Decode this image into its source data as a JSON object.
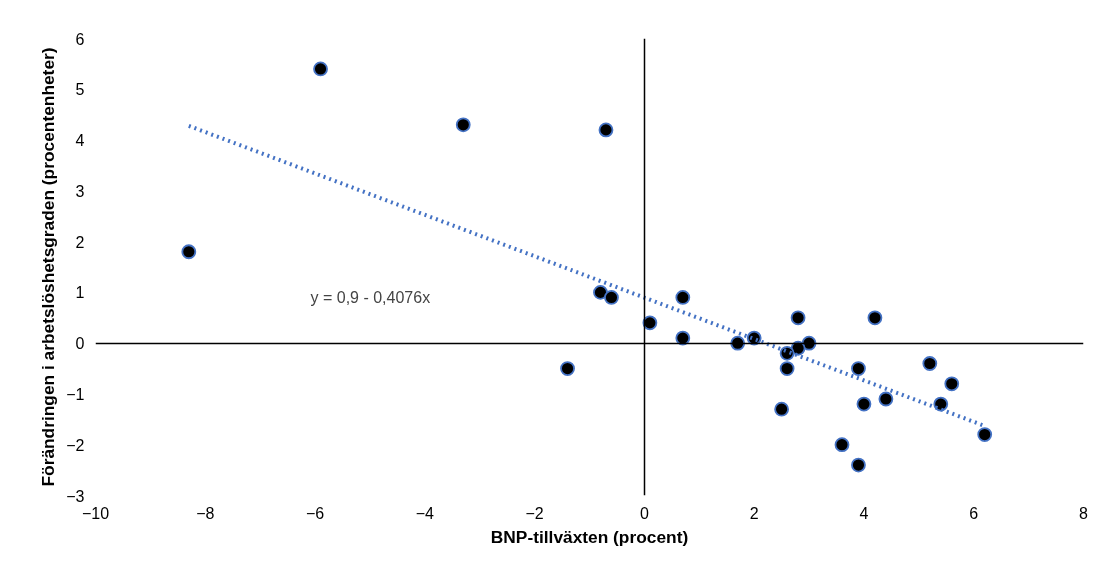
{
  "chart_data": {
    "type": "scatter",
    "xlabel": "BNP-tillväxten (procent)",
    "ylabel": "Förändringen i arbetslöshetsgraden (procentenheter)",
    "annotations": [
      "y = 0,9 - 0,4076x"
    ],
    "xlim": [
      -10,
      8
    ],
    "ylim": [
      -3,
      6
    ],
    "xticks": [
      -10,
      -8,
      -6,
      -4,
      -2,
      0,
      2,
      4,
      6,
      8
    ],
    "yticks": [
      -3,
      -2,
      -1,
      0,
      1,
      2,
      3,
      4,
      5,
      6
    ],
    "marker": "circle",
    "series": [
      {
        "color": "#000000",
        "x": [
          -8.3,
          -5.9,
          -3.3,
          -0.7,
          -0.8,
          -0.6,
          0.1,
          -1.4,
          0.7,
          0.7,
          1.7,
          2.0,
          2.8,
          3.0,
          2.8,
          2.6,
          2.6,
          2.5,
          3.6,
          3.9,
          3.9,
          4.2,
          4.0,
          4.4,
          5.2,
          5.6,
          5.4,
          6.2
        ],
        "values": [
          1.8,
          5.4,
          4.3,
          4.2,
          1.0,
          0.9,
          0.4,
          -0.5,
          0.9,
          0.1,
          0.0,
          0.1,
          0.5,
          0.0,
          -0.1,
          -0.2,
          -0.5,
          -1.3,
          -2.0,
          -2.4,
          -0.5,
          0.5,
          -1.2,
          -1.1,
          -0.4,
          -0.8,
          -1.2,
          -1.8
        ]
      },
      {
        "type": "line",
        "marker": "none",
        "color": "#4472c4",
        "line_style": "dotted",
        "x": [
          -8.3,
          6.2
        ],
        "values": [
          4.28,
          -1.63
        ]
      }
    ]
  }
}
